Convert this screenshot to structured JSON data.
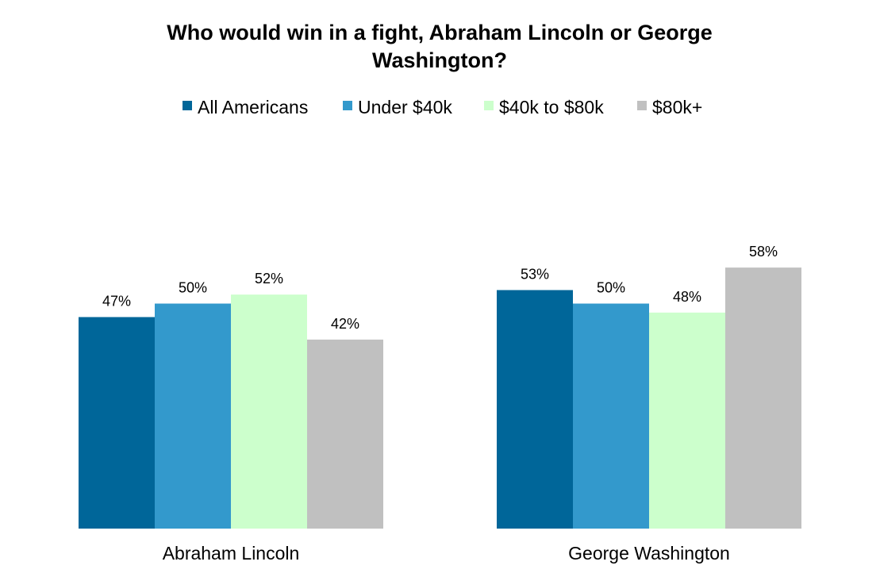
{
  "chart_data": {
    "type": "bar",
    "title_lines": [
      "Who would win in a fight, Abraham Lincoln or George",
      "Washington?"
    ],
    "categories": [
      "Abraham Lincoln",
      "George Washington"
    ],
    "series": [
      {
        "name": "All Americans",
        "values": [
          47,
          53
        ],
        "color": "#006699"
      },
      {
        "name": "Under $40k",
        "values": [
          50,
          50
        ],
        "color": "#3399CC"
      },
      {
        "name": "$40k to $80k",
        "values": [
          52,
          48
        ],
        "color": "#CCFFCC"
      },
      {
        "name": "$80k+",
        "values": [
          42,
          58
        ],
        "color": "#C0C0C0"
      }
    ],
    "value_suffix": "%",
    "ylim": [
      0,
      100
    ],
    "legend_position": "top",
    "grid": false,
    "xlabel": "",
    "ylabel": ""
  }
}
